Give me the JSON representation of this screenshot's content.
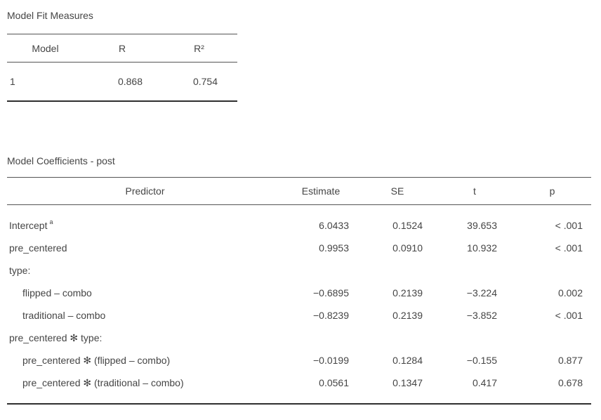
{
  "fit_table": {
    "title": "Model Fit Measures",
    "columns": {
      "model": "Model",
      "r": "R",
      "r2": "R²"
    },
    "row": {
      "model": "1",
      "r": "0.868",
      "r2": "0.754"
    }
  },
  "coef_table": {
    "title": "Model Coefficients - post",
    "columns": {
      "predictor": "Predictor",
      "estimate": "Estimate",
      "se": "SE",
      "t": "t",
      "p": "p"
    },
    "rows": [
      {
        "label": "Intercept",
        "sup": "a",
        "estimate": "6.0433",
        "se": "0.1524",
        "t": "39.653",
        "p": "< .001"
      },
      {
        "label": "pre_centered",
        "estimate": "0.9953",
        "se": "0.0910",
        "t": "10.932",
        "p": "< .001"
      },
      {
        "label": "type:"
      },
      {
        "label": "flipped – combo",
        "estimate": "−0.6895",
        "se": "0.2139",
        "t": "−3.224",
        "p": "0.002"
      },
      {
        "label": "traditional – combo",
        "estimate": "−0.8239",
        "se": "0.2139",
        "t": "−3.852",
        "p": "< .001"
      },
      {
        "label": "pre_centered ✻ type:"
      },
      {
        "label": "pre_centered ✻ (flipped – combo)",
        "estimate": "−0.0199",
        "se": "0.1284",
        "t": "−0.155",
        "p": "0.877"
      },
      {
        "label": "pre_centered ✻ (traditional – combo)",
        "estimate": "0.0561",
        "se": "0.1347",
        "t": "0.417",
        "p": "0.678"
      }
    ]
  },
  "colors": {
    "background": "#ffffff",
    "text": "#454545",
    "rule_thin": "#545454",
    "rule_thick": "#2f2f2f"
  }
}
